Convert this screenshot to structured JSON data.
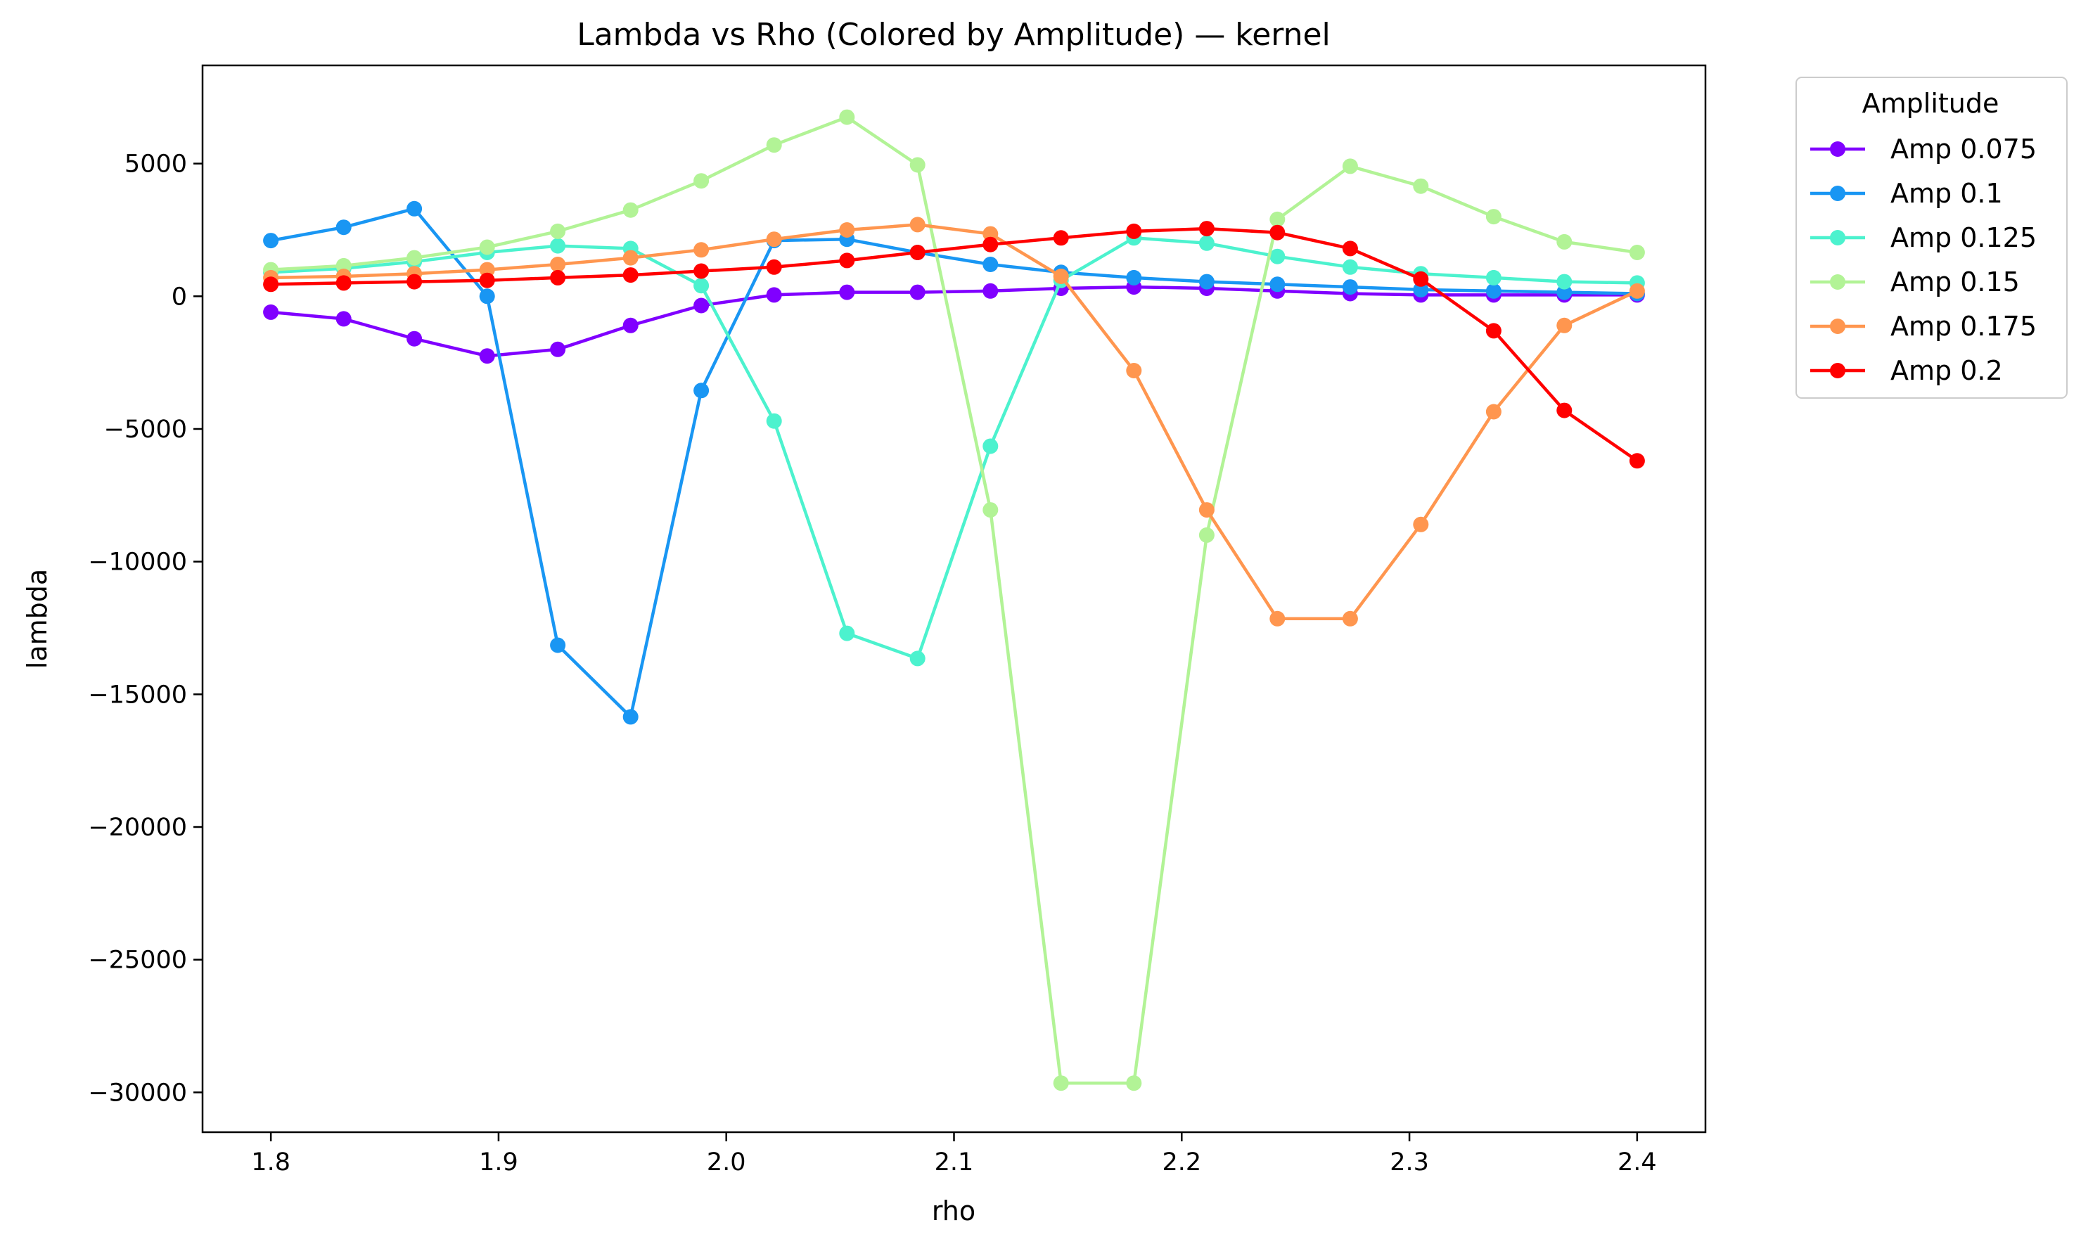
{
  "chart_data": {
    "type": "line",
    "title": "Lambda vs Rho (Colored by Amplitude) — kernel",
    "xlabel": "rho",
    "ylabel": "lambda",
    "xlim": [
      1.77,
      2.43
    ],
    "ylim": [
      -31500,
      8700
    ],
    "xticks": [
      1.8,
      1.9,
      2.0,
      2.1,
      2.2,
      2.3,
      2.4
    ],
    "xtick_labels": [
      "1.8",
      "1.9",
      "2.0",
      "2.1",
      "2.2",
      "2.3",
      "2.4"
    ],
    "yticks": [
      5000,
      0,
      -5000,
      -10000,
      -15000,
      -20000,
      -25000,
      -30000
    ],
    "ytick_labels": [
      "5000",
      "0",
      "−5000",
      "−10000",
      "−15000",
      "−20000",
      "−25000",
      "−30000"
    ],
    "grid": false,
    "legend": {
      "title": "Amplitude",
      "placement": "outside-top-right"
    },
    "x": [
      1.8,
      1.832,
      1.863,
      1.895,
      1.926,
      1.958,
      1.989,
      2.021,
      2.053,
      2.084,
      2.116,
      2.147,
      2.179,
      2.211,
      2.242,
      2.274,
      2.305,
      2.337,
      2.368,
      2.4
    ],
    "series": [
      {
        "name": "Amp 0.075",
        "color": "#8000ff",
        "values": [
          -600,
          -850,
          -1600,
          -2250,
          -2000,
          -1100,
          -350,
          50,
          150,
          150,
          200,
          300,
          350,
          300,
          200,
          100,
          50,
          50,
          50,
          50
        ]
      },
      {
        "name": "Amp 0.1",
        "color": "#1996f3",
        "values": [
          2100,
          2600,
          3300,
          0,
          -13150,
          -15850,
          -3550,
          2100,
          2150,
          1650,
          1200,
          900,
          700,
          550,
          450,
          350,
          250,
          200,
          150,
          100
        ]
      },
      {
        "name": "Amp 0.125",
        "color": "#4cf2ce",
        "values": [
          900,
          1050,
          1300,
          1650,
          1900,
          1800,
          400,
          -4700,
          -12700,
          -13650,
          -5650,
          600,
          2200,
          2000,
          1500,
          1100,
          850,
          700,
          550,
          500
        ]
      },
      {
        "name": "Amp 0.15",
        "color": "#b2f396",
        "values": [
          1000,
          1150,
          1450,
          1850,
          2450,
          3250,
          4350,
          5700,
          6750,
          4950,
          -8050,
          -29650,
          -29650,
          -9000,
          2900,
          4900,
          4150,
          3000,
          2050,
          1650
        ]
      },
      {
        "name": "Amp 0.175",
        "color": "#ff964f",
        "values": [
          700,
          750,
          850,
          1000,
          1200,
          1450,
          1750,
          2150,
          2500,
          2700,
          2350,
          750,
          -2800,
          -8050,
          -12150,
          -12150,
          -8600,
          -4350,
          -1100,
          200
        ]
      },
      {
        "name": "Amp 0.2",
        "color": "#ff0000",
        "values": [
          450,
          500,
          550,
          600,
          700,
          800,
          950,
          1100,
          1350,
          1650,
          1950,
          2200,
          2450,
          2550,
          2400,
          1800,
          650,
          -1300,
          -4300,
          -6200
        ]
      }
    ]
  }
}
